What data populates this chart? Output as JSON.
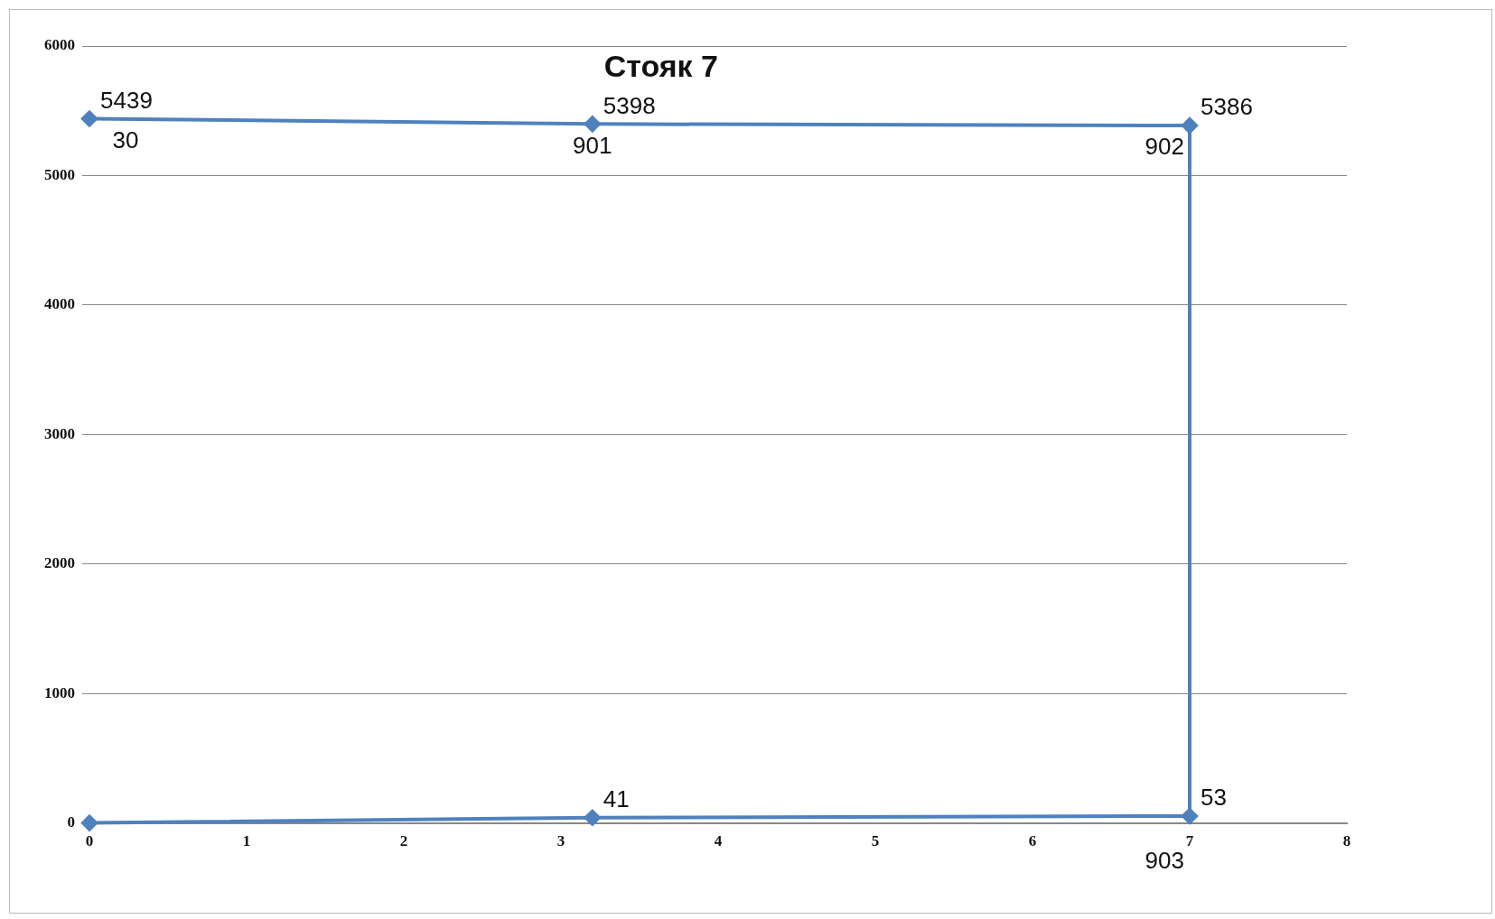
{
  "chart_data": {
    "type": "line",
    "title": "Стояк 7",
    "series": [
      {
        "color": "#4f81bd",
        "x": [
          0,
          3.2,
          7,
          7,
          3.2,
          0
        ],
        "values": [
          0,
          41,
          53,
          5386,
          5398,
          5439
        ],
        "value_labels": [
          null,
          "41",
          "53",
          "5386",
          "5398",
          "5439"
        ]
      }
    ],
    "annotations": [
      {
        "text": "30",
        "x": 0,
        "y": 5439
      },
      {
        "text": "901",
        "x": 3.2,
        "y": 5398
      },
      {
        "text": "902",
        "x": 7,
        "y": 5386
      },
      {
        "text": "903",
        "x": 7,
        "y": 53
      }
    ],
    "xlim": [
      0,
      8
    ],
    "xticks": [
      0,
      1,
      2,
      3,
      4,
      5,
      6,
      7,
      8
    ],
    "ylim": [
      0,
      6000
    ],
    "yticks": [
      0,
      1000,
      2000,
      3000,
      4000,
      5000,
      6000
    ],
    "grid": "y",
    "legend": false,
    "marker": "diamond",
    "line_style": "solid"
  }
}
